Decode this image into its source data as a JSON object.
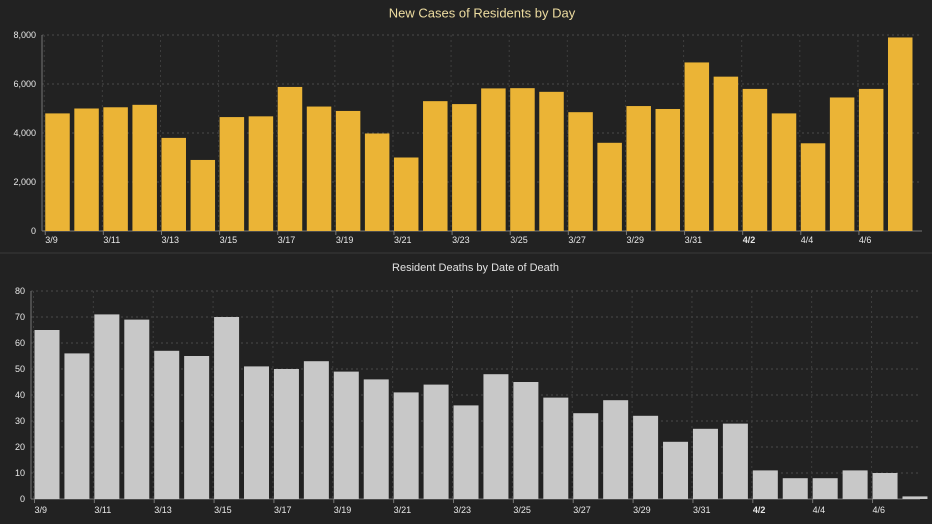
{
  "chart_data": [
    {
      "type": "bar",
      "title": "New Cases of Residents by Day",
      "xlabel": "",
      "ylabel": "",
      "ylim": [
        0,
        8000
      ],
      "yticks": [
        "0",
        "2,000",
        "4,000",
        "6,000",
        "8,000"
      ],
      "ytick_values": [
        0,
        2000,
        4000,
        6000,
        8000
      ],
      "x_tick_labels": [
        "3/9",
        "3/11",
        "3/13",
        "3/15",
        "3/17",
        "3/19",
        "3/21",
        "3/23",
        "3/25",
        "3/27",
        "3/29",
        "3/31",
        "4/2",
        "4/4",
        "4/6"
      ],
      "bold_tick": "4/2",
      "categories": [
        "3/9",
        "3/10",
        "3/11",
        "3/12",
        "3/13",
        "3/14",
        "3/15",
        "3/16",
        "3/17",
        "3/18",
        "3/19",
        "3/20",
        "3/21",
        "3/22",
        "3/23",
        "3/24",
        "3/25",
        "3/26",
        "3/27",
        "3/28",
        "3/29",
        "3/30",
        "3/31",
        "4/1",
        "4/2",
        "4/3",
        "4/4",
        "4/5",
        "4/6",
        "4/7"
      ],
      "values": [
        4800,
        5000,
        5050,
        5150,
        3800,
        2900,
        4650,
        4680,
        5880,
        5080,
        4900,
        3980,
        3000,
        5300,
        5180,
        5820,
        5830,
        5680,
        4850,
        3600,
        5100,
        4980,
        6880,
        6300,
        5800,
        4800,
        3580,
        5450,
        5800,
        7900
      ],
      "bar_color": "#EBB436",
      "title_color": "#EDDCA0",
      "grid": true
    },
    {
      "type": "bar",
      "title": "Resident Deaths by Date of Death",
      "xlabel": "",
      "ylabel": "",
      "ylim": [
        0,
        80
      ],
      "yticks": [
        "0",
        "10",
        "20",
        "30",
        "40",
        "50",
        "60",
        "70",
        "80"
      ],
      "ytick_values": [
        0,
        10,
        20,
        30,
        40,
        50,
        60,
        70,
        80
      ],
      "x_tick_labels": [
        "3/9",
        "3/11",
        "3/13",
        "3/15",
        "3/17",
        "3/19",
        "3/21",
        "3/23",
        "3/25",
        "3/27",
        "3/29",
        "3/31",
        "4/2",
        "4/4",
        "4/6"
      ],
      "bold_tick": "4/2",
      "categories": [
        "3/9",
        "3/10",
        "3/11",
        "3/12",
        "3/13",
        "3/14",
        "3/15",
        "3/16",
        "3/17",
        "3/18",
        "3/19",
        "3/20",
        "3/21",
        "3/22",
        "3/23",
        "3/24",
        "3/25",
        "3/26",
        "3/27",
        "3/28",
        "3/29",
        "3/30",
        "3/31",
        "4/1",
        "4/2",
        "4/3",
        "4/4",
        "4/5",
        "4/6",
        "4/7"
      ],
      "values": [
        65,
        56,
        71,
        69,
        57,
        55,
        70,
        51,
        50,
        53,
        49,
        46,
        41,
        44,
        36,
        48,
        45,
        39,
        33,
        38,
        32,
        22,
        27,
        29,
        11,
        8,
        8,
        11,
        10,
        1
      ],
      "bar_color": "#C8C8C8",
      "title_color": "#E2E2E2",
      "grid": true
    }
  ]
}
